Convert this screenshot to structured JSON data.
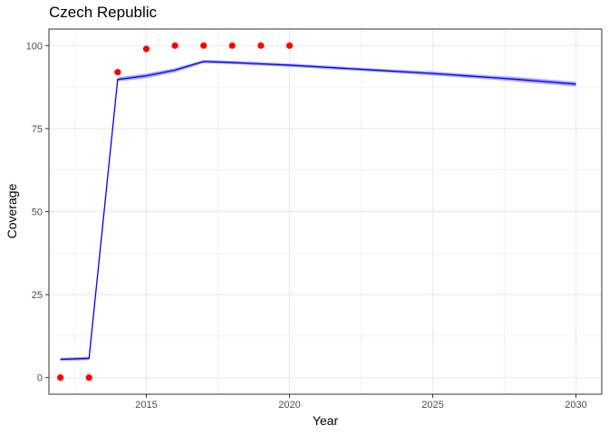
{
  "chart_data": {
    "type": "line",
    "title": "Czech Republic",
    "xlabel": "Year",
    "ylabel": "Coverage",
    "xlim": [
      2011.6,
      2030.9
    ],
    "ylim": [
      -5,
      105
    ],
    "x_ticks": [
      2015,
      2020,
      2025,
      2030
    ],
    "y_ticks": [
      0,
      25,
      50,
      75,
      100
    ],
    "grid": true,
    "colors": {
      "line": "#0000ff",
      "band": "#9999ff",
      "points": "#ff0000",
      "grid": "#ebebeb",
      "frame": "#333333"
    },
    "series": [
      {
        "type": "line",
        "x": [
          2012,
          2013,
          2014,
          2015,
          2016,
          2017,
          2018,
          2019,
          2020,
          2021,
          2022,
          2023,
          2024,
          2025,
          2026,
          2027,
          2028,
          2029,
          2030
        ],
        "y": [
          5.5,
          5.8,
          89.8,
          90.9,
          92.6,
          95.2,
          94.9,
          94.5,
          94.1,
          93.6,
          93.1,
          92.6,
          92.1,
          91.6,
          91.0,
          90.4,
          89.8,
          89.1,
          88.4
        ],
        "lower": [
          5.0,
          5.3,
          89.2,
          90.2,
          92.0,
          94.7,
          94.4,
          94.0,
          93.6,
          93.1,
          92.6,
          92.1,
          91.6,
          91.0,
          90.4,
          89.8,
          89.1,
          88.4,
          87.7
        ],
        "upper": [
          6.0,
          6.3,
          90.4,
          91.6,
          93.2,
          95.7,
          95.4,
          95.0,
          94.6,
          94.1,
          93.6,
          93.1,
          92.6,
          92.2,
          91.6,
          91.0,
          90.5,
          89.8,
          89.1
        ]
      },
      {
        "type": "scatter",
        "x": [
          2012,
          2013,
          2014,
          2015,
          2016,
          2017,
          2018,
          2019,
          2020
        ],
        "y": [
          0,
          0,
          92,
          99,
          100,
          100,
          100,
          100,
          100
        ]
      }
    ]
  }
}
